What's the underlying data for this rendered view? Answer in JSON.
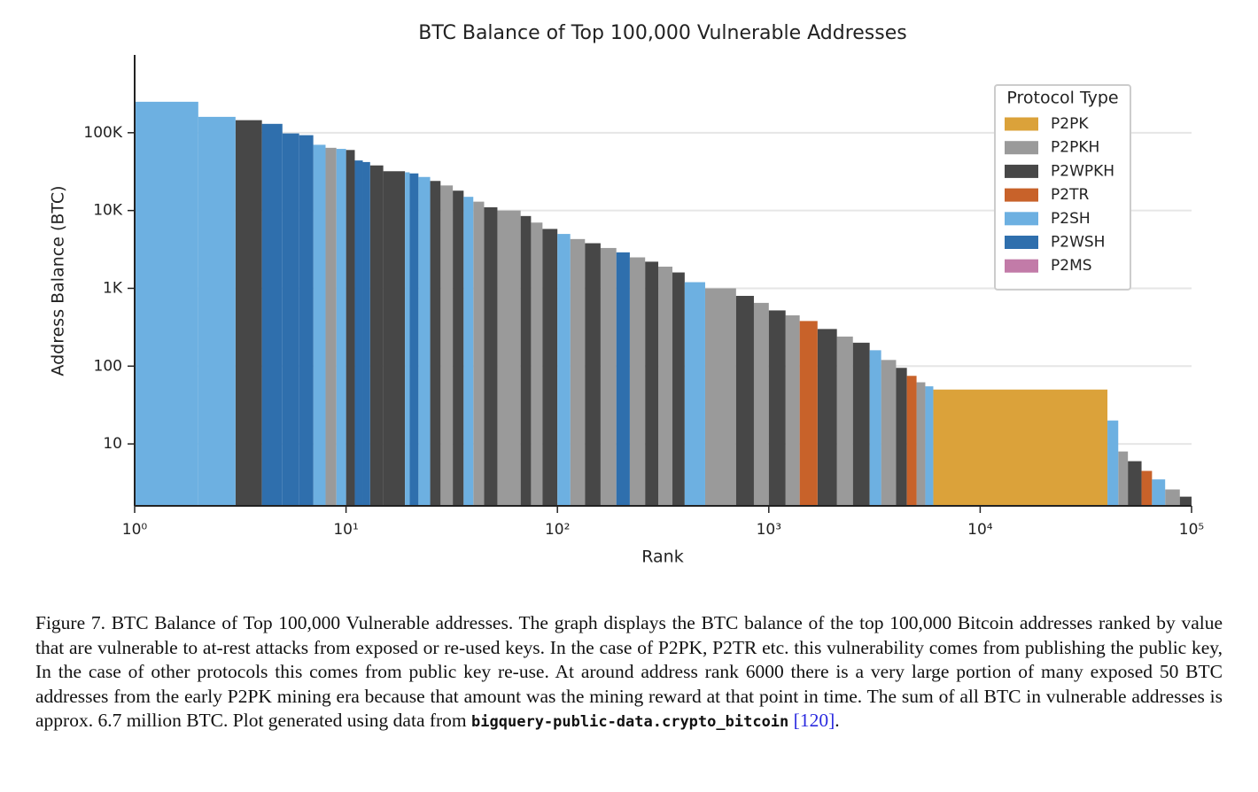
{
  "chart_data": {
    "type": "bar",
    "title": "BTC Balance of Top 100,000 Vulnerable Addresses",
    "x_label": "Rank",
    "y_label": "Address Balance (BTC)",
    "log_x": true,
    "log_y": true,
    "grid": true,
    "xlim": [
      1,
      100000
    ],
    "ylim": [
      1.6,
      1000000
    ],
    "xticks": [
      {
        "value": 1,
        "label": "10⁰"
      },
      {
        "value": 10,
        "label": "10¹"
      },
      {
        "value": 100,
        "label": "10²"
      },
      {
        "value": 1000,
        "label": "10³"
      },
      {
        "value": 10000,
        "label": "10⁴"
      },
      {
        "value": 100000,
        "label": "10⁵"
      }
    ],
    "yticks": [
      10,
      100,
      {
        "value": 1000,
        "label": "1K"
      },
      {
        "value": 10000,
        "label": "10K"
      },
      {
        "value": 100000,
        "label": "100K"
      }
    ],
    "legend_title": "Protocol Type",
    "legend_position": "upper right",
    "series": [
      {
        "name": "P2PK",
        "color": "#dba23a",
        "x0": [
          6000
        ],
        "x1": [
          40000
        ],
        "values": [
          50
        ]
      },
      {
        "name": "P2PKH",
        "color": "#9a9a9a",
        "x0": [
          8,
          28,
          40,
          52,
          75,
          115,
          160,
          220,
          300,
          500,
          850,
          1200,
          2100,
          3400,
          5000,
          45000,
          75000
        ],
        "x1": [
          9,
          32,
          45,
          67,
          85,
          135,
          190,
          260,
          350,
          700,
          1000,
          1400,
          2500,
          4000,
          5500,
          50000,
          88000
        ],
        "values": [
          64000,
          21000,
          13000,
          10000,
          7000,
          4300,
          3300,
          2500,
          1900,
          1000,
          650,
          450,
          240,
          120,
          62,
          8,
          2.6
        ]
      },
      {
        "name": "P2WPKH",
        "color": "#474747",
        "x0": [
          3,
          10,
          13,
          15,
          25,
          32,
          45,
          67,
          85,
          135,
          260,
          350,
          700,
          1000,
          1700,
          2500,
          4000,
          50000,
          88000
        ],
        "x1": [
          4,
          11,
          15,
          19,
          28,
          36,
          52,
          75,
          100,
          160,
          300,
          400,
          850,
          1200,
          2100,
          3000,
          4500,
          58000,
          100000
        ],
        "values": [
          145000,
          60000,
          38000,
          32000,
          24000,
          18000,
          11000,
          8500,
          5800,
          3800,
          2200,
          1600,
          800,
          520,
          300,
          200,
          95,
          6,
          2.1
        ]
      },
      {
        "name": "P2TR",
        "color": "#c8622a",
        "x0": [
          1400,
          4500,
          58000
        ],
        "x1": [
          1700,
          5000,
          65000
        ],
        "values": [
          380,
          75,
          4.5
        ]
      },
      {
        "name": "P2SH",
        "color": "#6db0e1",
        "x0": [
          1,
          2,
          7,
          9,
          19,
          22,
          36,
          100,
          400,
          3000,
          5500,
          40000,
          65000
        ],
        "x1": [
          2,
          3,
          8,
          10,
          20,
          25,
          40,
          115,
          500,
          3400,
          6000,
          45000,
          75000
        ],
        "values": [
          250000,
          160000,
          70000,
          62000,
          31000,
          27000,
          15000,
          5000,
          1200,
          160,
          55,
          20,
          3.5
        ]
      },
      {
        "name": "P2WSH",
        "color": "#2f6fad",
        "x0": [
          4,
          5,
          6,
          11,
          12,
          20,
          190
        ],
        "x1": [
          5,
          6,
          7,
          12,
          13,
          22,
          220
        ],
        "values": [
          130000,
          98000,
          93000,
          44000,
          42000,
          30000,
          2900
        ]
      },
      {
        "name": "P2MS",
        "color": "#c27ba8",
        "x0": [],
        "x1": [],
        "values": []
      }
    ]
  },
  "caption": {
    "label": "Figure 7.",
    "text": "BTC Balance of Top 100,000 Vulnerable addresses. The graph displays the BTC balance of the top 100,000 Bitcoin addresses ranked by value that are vulnerable to at-rest attacks from exposed or re-used keys. In the case of P2PK, P2TR etc. this vulnerability comes from publishing the public key, In the case of other protocols this comes from public key re-use. At around address rank 6000 there is a very large portion of many exposed 50 BTC addresses from the early P2PK mining era because that amount was the mining reward at that point in time. The sum of all BTC in vulnerable addresses is approx. 6.7 million BTC. Plot generated using data from",
    "code": "bigquery-public-data.crypto_bitcoin",
    "citation": "[120]",
    "end": "."
  }
}
